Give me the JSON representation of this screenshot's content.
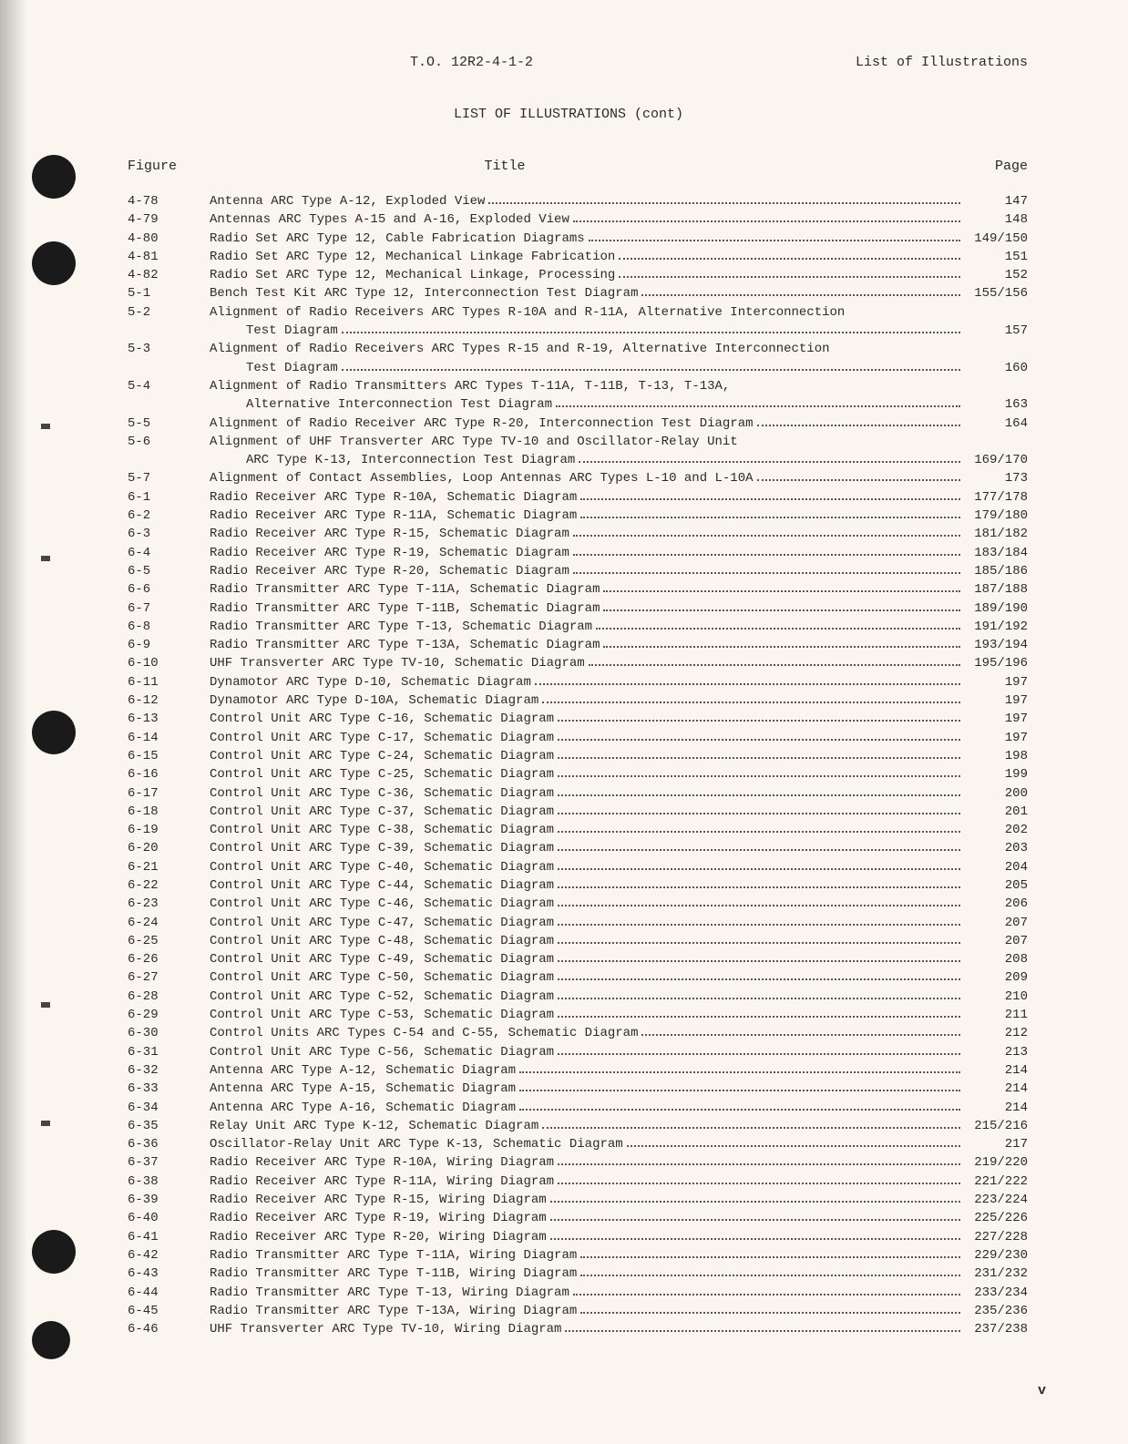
{
  "header_doc_id": "T.O. 12R2-4-1-2",
  "header_right": "List of Illustrations",
  "section_title": "LIST OF ILLUSTRATIONS (cont)",
  "col_figure": "Figure",
  "col_title": "Title",
  "col_page": "Page",
  "footer_roman": "v",
  "entries": [
    {
      "fig": "4-78",
      "title": "Antenna ARC Type A-12, Exploded View",
      "page": "147"
    },
    {
      "fig": "4-79",
      "title": "Antennas ARC Types A-15 and A-16, Exploded View",
      "page": "148"
    },
    {
      "fig": "4-80",
      "title": "Radio Set ARC Type 12, Cable Fabrication Diagrams",
      "page": "149/150"
    },
    {
      "fig": "4-81",
      "title": "Radio Set ARC Type 12, Mechanical Linkage Fabrication",
      "page": "151"
    },
    {
      "fig": "4-82",
      "title": "Radio Set ARC Type 12, Mechanical Linkage, Processing",
      "page": "152"
    },
    {
      "fig": "5-1",
      "title": "Bench Test Kit ARC Type 12, Interconnection Test Diagram",
      "page": "155/156"
    },
    {
      "fig": "5-2",
      "title": "Alignment of Radio Receivers ARC Types R-10A and R-11A, Alternative Interconnection",
      "page": ""
    },
    {
      "fig": "",
      "title": "Test Diagram",
      "page": "157",
      "cont": true
    },
    {
      "fig": "5-3",
      "title": "Alignment of Radio Receivers ARC Types R-15 and R-19, Alternative Interconnection",
      "page": ""
    },
    {
      "fig": "",
      "title": "Test Diagram",
      "page": "160",
      "cont": true
    },
    {
      "fig": "5-4",
      "title": "Alignment of Radio Transmitters ARC Types T-11A, T-11B, T-13, T-13A,",
      "page": ""
    },
    {
      "fig": "",
      "title": "Alternative Interconnection Test Diagram",
      "page": "163",
      "cont": true
    },
    {
      "fig": "5-5",
      "title": "Alignment of Radio Receiver ARC Type R-20, Interconnection Test Diagram",
      "page": "164"
    },
    {
      "fig": "5-6",
      "title": "Alignment of UHF Transverter ARC Type TV-10 and Oscillator-Relay Unit",
      "page": ""
    },
    {
      "fig": "",
      "title": "ARC Type K-13, Interconnection Test Diagram",
      "page": "169/170",
      "cont": true
    },
    {
      "fig": "5-7",
      "title": "Alignment of Contact Assemblies, Loop Antennas ARC Types L-10 and L-10A",
      "page": "173"
    },
    {
      "fig": "6-1",
      "title": "Radio Receiver ARC Type R-10A, Schematic Diagram",
      "page": "177/178"
    },
    {
      "fig": "6-2",
      "title": "Radio Receiver ARC Type R-11A, Schematic Diagram",
      "page": "179/180"
    },
    {
      "fig": "6-3",
      "title": "Radio Receiver ARC Type R-15, Schematic Diagram",
      "page": "181/182"
    },
    {
      "fig": "6-4",
      "title": "Radio Receiver ARC Type R-19, Schematic Diagram",
      "page": "183/184"
    },
    {
      "fig": "6-5",
      "title": "Radio Receiver ARC Type R-20, Schematic Diagram",
      "page": "185/186"
    },
    {
      "fig": "6-6",
      "title": "Radio Transmitter ARC Type T-11A, Schematic Diagram",
      "page": "187/188"
    },
    {
      "fig": "6-7",
      "title": "Radio Transmitter ARC Type T-11B, Schematic Diagram",
      "page": "189/190"
    },
    {
      "fig": "6-8",
      "title": "Radio Transmitter ARC Type T-13, Schematic Diagram",
      "page": "191/192"
    },
    {
      "fig": "6-9",
      "title": "Radio Transmitter ARC Type T-13A, Schematic Diagram",
      "page": "193/194"
    },
    {
      "fig": "6-10",
      "title": "UHF Transverter ARC Type TV-10, Schematic Diagram",
      "page": "195/196"
    },
    {
      "fig": "6-11",
      "title": "Dynamotor ARC Type D-10, Schematic Diagram",
      "page": "197"
    },
    {
      "fig": "6-12",
      "title": "Dynamotor ARC Type D-10A, Schematic Diagram",
      "page": "197"
    },
    {
      "fig": "6-13",
      "title": "Control Unit ARC Type C-16, Schematic Diagram",
      "page": "197"
    },
    {
      "fig": "6-14",
      "title": "Control Unit ARC Type C-17, Schematic Diagram",
      "page": "197"
    },
    {
      "fig": "6-15",
      "title": "Control Unit ARC Type C-24, Schematic Diagram",
      "page": "198"
    },
    {
      "fig": "6-16",
      "title": "Control Unit ARC Type C-25, Schematic Diagram",
      "page": "199"
    },
    {
      "fig": "6-17",
      "title": "Control Unit ARC Type C-36, Schematic Diagram",
      "page": "200"
    },
    {
      "fig": "6-18",
      "title": "Control Unit ARC Type C-37, Schematic Diagram",
      "page": "201"
    },
    {
      "fig": "6-19",
      "title": "Control Unit ARC Type C-38, Schematic Diagram",
      "page": "202"
    },
    {
      "fig": "6-20",
      "title": "Control Unit ARC Type C-39, Schematic Diagram",
      "page": "203"
    },
    {
      "fig": "6-21",
      "title": "Control Unit ARC Type C-40, Schematic Diagram",
      "page": "204"
    },
    {
      "fig": "6-22",
      "title": "Control Unit ARC Type C-44, Schematic Diagram",
      "page": "205"
    },
    {
      "fig": "6-23",
      "title": "Control Unit ARC Type C-46, Schematic Diagram",
      "page": "206"
    },
    {
      "fig": "6-24",
      "title": "Control Unit ARC Type C-47, Schematic Diagram",
      "page": "207"
    },
    {
      "fig": "6-25",
      "title": "Control Unit ARC Type C-48, Schematic Diagram",
      "page": "207"
    },
    {
      "fig": "6-26",
      "title": "Control Unit ARC Type C-49, Schematic Diagram",
      "page": "208"
    },
    {
      "fig": "6-27",
      "title": "Control Unit ARC Type C-50, Schematic Diagram",
      "page": "209"
    },
    {
      "fig": "6-28",
      "title": "Control Unit ARC Type C-52, Schematic Diagram",
      "page": "210"
    },
    {
      "fig": "6-29",
      "title": "Control Unit ARC Type C-53, Schematic Diagram",
      "page": "211"
    },
    {
      "fig": "6-30",
      "title": "Control Units ARC Types C-54 and C-55, Schematic Diagram",
      "page": "212"
    },
    {
      "fig": "6-31",
      "title": "Control Unit ARC Type C-56, Schematic Diagram",
      "page": "213"
    },
    {
      "fig": "6-32",
      "title": "Antenna ARC Type A-12, Schematic Diagram",
      "page": "214"
    },
    {
      "fig": "6-33",
      "title": "Antenna ARC Type A-15, Schematic Diagram",
      "page": "214"
    },
    {
      "fig": "6-34",
      "title": "Antenna ARC Type A-16, Schematic Diagram",
      "page": "214"
    },
    {
      "fig": "6-35",
      "title": "Relay Unit ARC Type K-12, Schematic Diagram",
      "page": "215/216"
    },
    {
      "fig": "6-36",
      "title": "Oscillator-Relay Unit ARC Type K-13, Schematic Diagram",
      "page": "217"
    },
    {
      "fig": "6-37",
      "title": "Radio Receiver ARC Type R-10A, Wiring Diagram",
      "page": "219/220"
    },
    {
      "fig": "6-38",
      "title": "Radio Receiver ARC Type R-11A, Wiring Diagram",
      "page": "221/222"
    },
    {
      "fig": "6-39",
      "title": "Radio Receiver ARC Type R-15, Wiring Diagram",
      "page": "223/224"
    },
    {
      "fig": "6-40",
      "title": "Radio Receiver ARC Type R-19, Wiring Diagram",
      "page": "225/226"
    },
    {
      "fig": "6-41",
      "title": "Radio Receiver ARC Type R-20, Wiring Diagram",
      "page": "227/228"
    },
    {
      "fig": "6-42",
      "title": "Radio Transmitter ARC Type T-11A, Wiring Diagram",
      "page": "229/230"
    },
    {
      "fig": "6-43",
      "title": "Radio Transmitter ARC Type T-11B, Wiring Diagram",
      "page": "231/232"
    },
    {
      "fig": "6-44",
      "title": "Radio Transmitter ARC Type T-13, Wiring Diagram",
      "page": "233/234"
    },
    {
      "fig": "6-45",
      "title": "Radio Transmitter ARC Type T-13A, Wiring Diagram",
      "page": "235/236"
    },
    {
      "fig": "6-46",
      "title": "UHF Transverter ARC Type TV-10, Wiring Diagram",
      "page": "237/238"
    }
  ]
}
